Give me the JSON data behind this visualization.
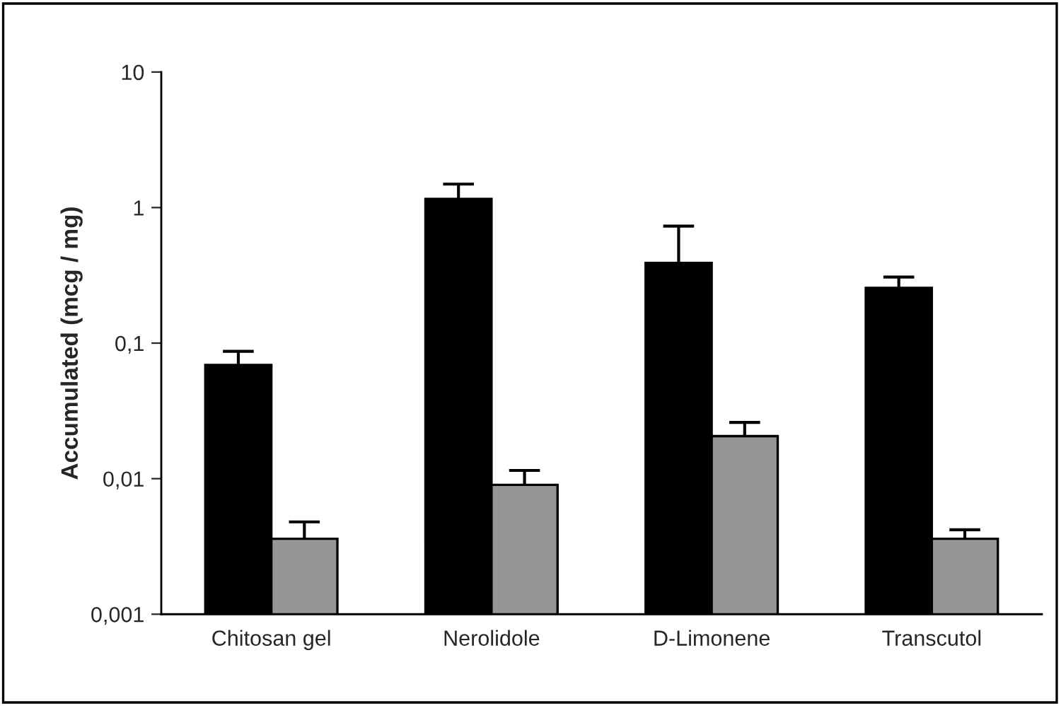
{
  "chart_data": {
    "type": "bar",
    "ylabel": "Accumulated (mcg / mg)",
    "categories": [
      "Chitosan gel",
      "Nerolidole",
      "D-Limonene",
      "Transcutol"
    ],
    "series": [
      {
        "color": "#000000",
        "values": [
          0.069,
          1.16,
          0.39,
          0.256
        ],
        "errors": [
          [
            0.069,
            0.087
          ],
          [
            1.16,
            1.49
          ],
          [
            0.39,
            0.73
          ],
          [
            0.256,
            0.307
          ]
        ]
      },
      {
        "color": "#969696",
        "values": [
          0.0036,
          0.009,
          0.0206,
          0.0036
        ],
        "errors": [
          [
            0.0036,
            0.0048
          ],
          [
            0.009,
            0.0115
          ],
          [
            0.0206,
            0.026
          ],
          [
            0.0036,
            0.0042
          ]
        ]
      }
    ],
    "log": true,
    "ylim": [
      0.001,
      10
    ],
    "yticks": [
      {
        "value": 0.001,
        "label": "0,001"
      },
      {
        "value": 0.01,
        "label": "0,01"
      },
      {
        "value": 0.1,
        "label": "0,1"
      },
      {
        "value": 1,
        "label": "1"
      },
      {
        "value": 10,
        "label": "10"
      }
    ],
    "grid": false
  }
}
